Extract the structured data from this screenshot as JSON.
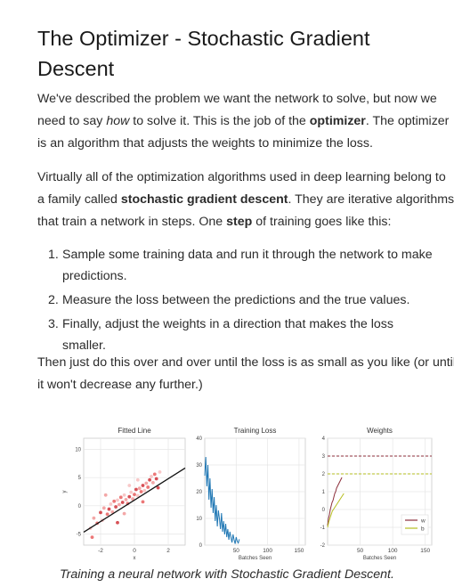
{
  "title": "The Optimizer - Stochastic Gradient Descent",
  "para1": [
    {
      "t": "We've described the problem we want the network to solve, but now we need to say "
    },
    {
      "t": "how",
      "s": "em"
    },
    {
      "t": " to solve it. This is the job of the "
    },
    {
      "t": "optimizer",
      "s": "strong"
    },
    {
      "t": ". The optimizer is an algorithm that adjusts the weights to minimize the loss."
    }
  ],
  "para2": [
    {
      "t": "Virtually all of the optimization algorithms used in deep learning belong to a family called "
    },
    {
      "t": "stochastic gradient descent",
      "s": "strong"
    },
    {
      "t": ". They are iterative algorithms that train a network in steps. One "
    },
    {
      "t": "step",
      "s": "strong"
    },
    {
      "t": " of training goes like this:"
    }
  ],
  "steps": [
    {
      "num": "1.",
      "text": "Sample some training data and run it through the network to make predictions."
    },
    {
      "num": "2.",
      "text": "Measure the loss between the predictions and the true values."
    },
    {
      "num": "3.",
      "text": "Finally, adjust the weights in a direction that makes the loss smaller."
    }
  ],
  "para3": "Then just do this over and over until the loss is as small as you like (or until it won't decrease any further.)",
  "caption": "Training a neural network with Stochastic Gradient Descent.",
  "chart_data": [
    {
      "type": "scatter",
      "title": "Fitted Line",
      "xlabel": "x",
      "ylabel": "y",
      "xlim": [
        -3,
        3
      ],
      "ylim": [
        -7,
        12
      ],
      "xticks": [
        -2,
        0,
        2
      ],
      "yticks": [
        -5,
        0,
        5,
        10
      ],
      "grid": true,
      "line": {
        "slope": 1.9,
        "intercept": 1.0,
        "color": "#111111"
      },
      "points": [
        [
          -2.6,
          -4.0
        ],
        [
          -2.4,
          -2.2
        ],
        [
          -2.2,
          -3.1
        ],
        [
          -2.0,
          -1.2
        ],
        [
          -1.9,
          -2.6
        ],
        [
          -1.8,
          -0.4
        ],
        [
          -1.6,
          -1.5
        ],
        [
          -1.5,
          -0.6
        ],
        [
          -1.4,
          0.3
        ],
        [
          -1.3,
          -1.1
        ],
        [
          -1.2,
          0.8
        ],
        [
          -1.1,
          -0.2
        ],
        [
          -1.0,
          1.0
        ],
        [
          -0.9,
          0.2
        ],
        [
          -0.8,
          1.5
        ],
        [
          -0.7,
          0.6
        ],
        [
          -0.6,
          1.9
        ],
        [
          -0.5,
          1.1
        ],
        [
          -0.4,
          0.4
        ],
        [
          -0.3,
          1.6
        ],
        [
          -0.2,
          2.4
        ],
        [
          -0.1,
          1.2
        ],
        [
          0.0,
          2.0
        ],
        [
          0.1,
          2.9
        ],
        [
          0.2,
          1.8
        ],
        [
          0.3,
          3.1
        ],
        [
          0.4,
          2.5
        ],
        [
          0.5,
          3.6
        ],
        [
          0.6,
          2.7
        ],
        [
          0.7,
          4.0
        ],
        [
          0.8,
          3.3
        ],
        [
          0.9,
          4.6
        ],
        [
          1.0,
          5.2
        ],
        [
          1.1,
          4.1
        ],
        [
          1.2,
          5.6
        ],
        [
          1.3,
          4.8
        ],
        [
          1.5,
          6.0
        ],
        [
          -1.7,
          1.9
        ],
        [
          -2.5,
          -5.6
        ],
        [
          -1.0,
          -3.0
        ],
        [
          0.2,
          4.6
        ],
        [
          -0.6,
          -1.4
        ],
        [
          0.5,
          0.7
        ],
        [
          1.4,
          3.2
        ],
        [
          -0.3,
          3.6
        ]
      ],
      "point_colors": [
        "#f6b6b6",
        "#ef8a8a",
        "#e54a4a",
        "#c9161d"
      ]
    },
    {
      "type": "line",
      "title": "Training Loss",
      "xlabel": "Batches Seen",
      "ylabel": "",
      "xlim": [
        0,
        160
      ],
      "ylim": [
        0,
        40
      ],
      "xticks": [
        50,
        100,
        150
      ],
      "yticks": [
        0,
        10,
        20,
        30,
        40
      ],
      "grid": true,
      "color": "#1f77b4",
      "values": [
        26,
        33,
        22,
        30,
        17,
        25,
        14,
        21,
        12,
        18,
        9,
        15,
        7,
        13,
        10,
        6,
        12,
        5,
        9,
        4,
        8,
        3,
        6,
        2,
        5,
        3,
        1,
        4,
        2,
        0.5,
        3,
        1.5,
        0.8,
        2.2
      ]
    },
    {
      "type": "line",
      "title": "Weights",
      "xlabel": "Batches Seen",
      "ylabel": "",
      "xlim": [
        0,
        160
      ],
      "ylim": [
        -2,
        4
      ],
      "xticks": [
        50,
        100,
        150
      ],
      "yticks": [
        -2,
        -1,
        0,
        1,
        2,
        3,
        4
      ],
      "grid": true,
      "legend": "bottom-right",
      "series": [
        {
          "name": "w",
          "color": "#8c2f3b",
          "target": 3.0,
          "values": [
            -0.9,
            -0.5,
            -0.3,
            0.0,
            0.2,
            0.4,
            0.5,
            0.7,
            0.9,
            1.0,
            1.2,
            1.3,
            1.4,
            1.5,
            1.6,
            1.7,
            1.8
          ]
        },
        {
          "name": "b",
          "color": "#b5bd1f",
          "target": 2.0,
          "values": [
            -1.0,
            -0.7,
            -0.5,
            -0.3,
            -0.1,
            0.0,
            0.1,
            0.2,
            0.3,
            0.4,
            0.5,
            0.6,
            0.7,
            0.8,
            0.9
          ]
        }
      ]
    }
  ]
}
